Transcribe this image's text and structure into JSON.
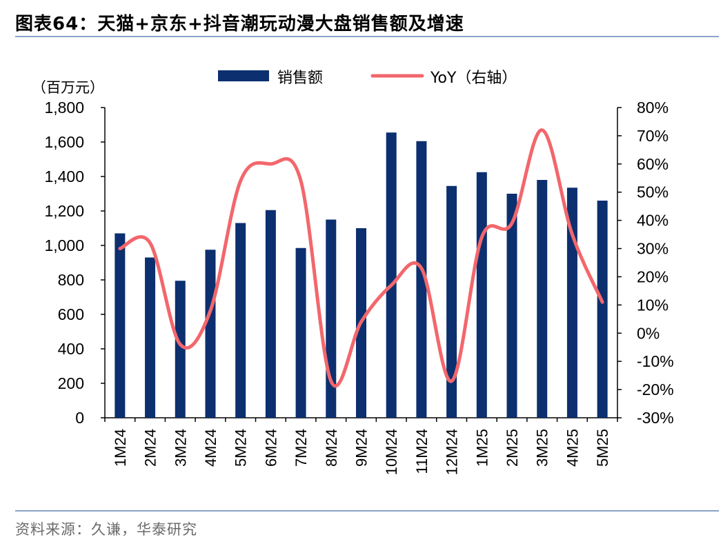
{
  "header": {
    "figure_label": "图表64：",
    "title": "天猫+京东+抖音潮玩动漫大盘销售额及增速"
  },
  "source": "资料来源：久谦，华泰研究",
  "colors": {
    "bar": "#0c2f6f",
    "line": "#f2676c",
    "rule": "#8aa2c8"
  },
  "chart_data": {
    "type": "bar",
    "categories": [
      "1M24",
      "2M24",
      "3M24",
      "4M24",
      "5M24",
      "6M24",
      "7M24",
      "8M24",
      "9M24",
      "10M24",
      "11M24",
      "12M24",
      "1M25",
      "2M25",
      "3M25",
      "4M25",
      "5M25"
    ],
    "series": [
      {
        "name": "销售额",
        "type": "bar",
        "axis": "left",
        "values": [
          1070,
          930,
          795,
          975,
          1130,
          1205,
          985,
          1150,
          1100,
          1655,
          1605,
          1345,
          1425,
          1300,
          1380,
          1335,
          1260
        ]
      },
      {
        "name": "YoY（右轴）",
        "type": "line",
        "axis": "right",
        "values": [
          0.3,
          0.32,
          -0.04,
          0.08,
          0.54,
          0.6,
          0.54,
          -0.17,
          0.04,
          0.17,
          0.23,
          -0.17,
          0.34,
          0.39,
          0.72,
          0.35,
          0.11
        ]
      }
    ],
    "left_axis": {
      "unit_label": "（百万元）",
      "min": 0,
      "max": 1800,
      "step": 200,
      "tick_labels": [
        "0",
        "200",
        "400",
        "600",
        "800",
        "1,000",
        "1,200",
        "1,400",
        "1,600",
        "1,800"
      ]
    },
    "right_axis": {
      "min": -0.3,
      "max": 0.8,
      "step": 0.1,
      "tick_labels": [
        "-30%",
        "-20%",
        "-10%",
        "0%",
        "10%",
        "20%",
        "30%",
        "40%",
        "50%",
        "60%",
        "70%",
        "80%"
      ]
    },
    "legend_position": "top-center"
  }
}
